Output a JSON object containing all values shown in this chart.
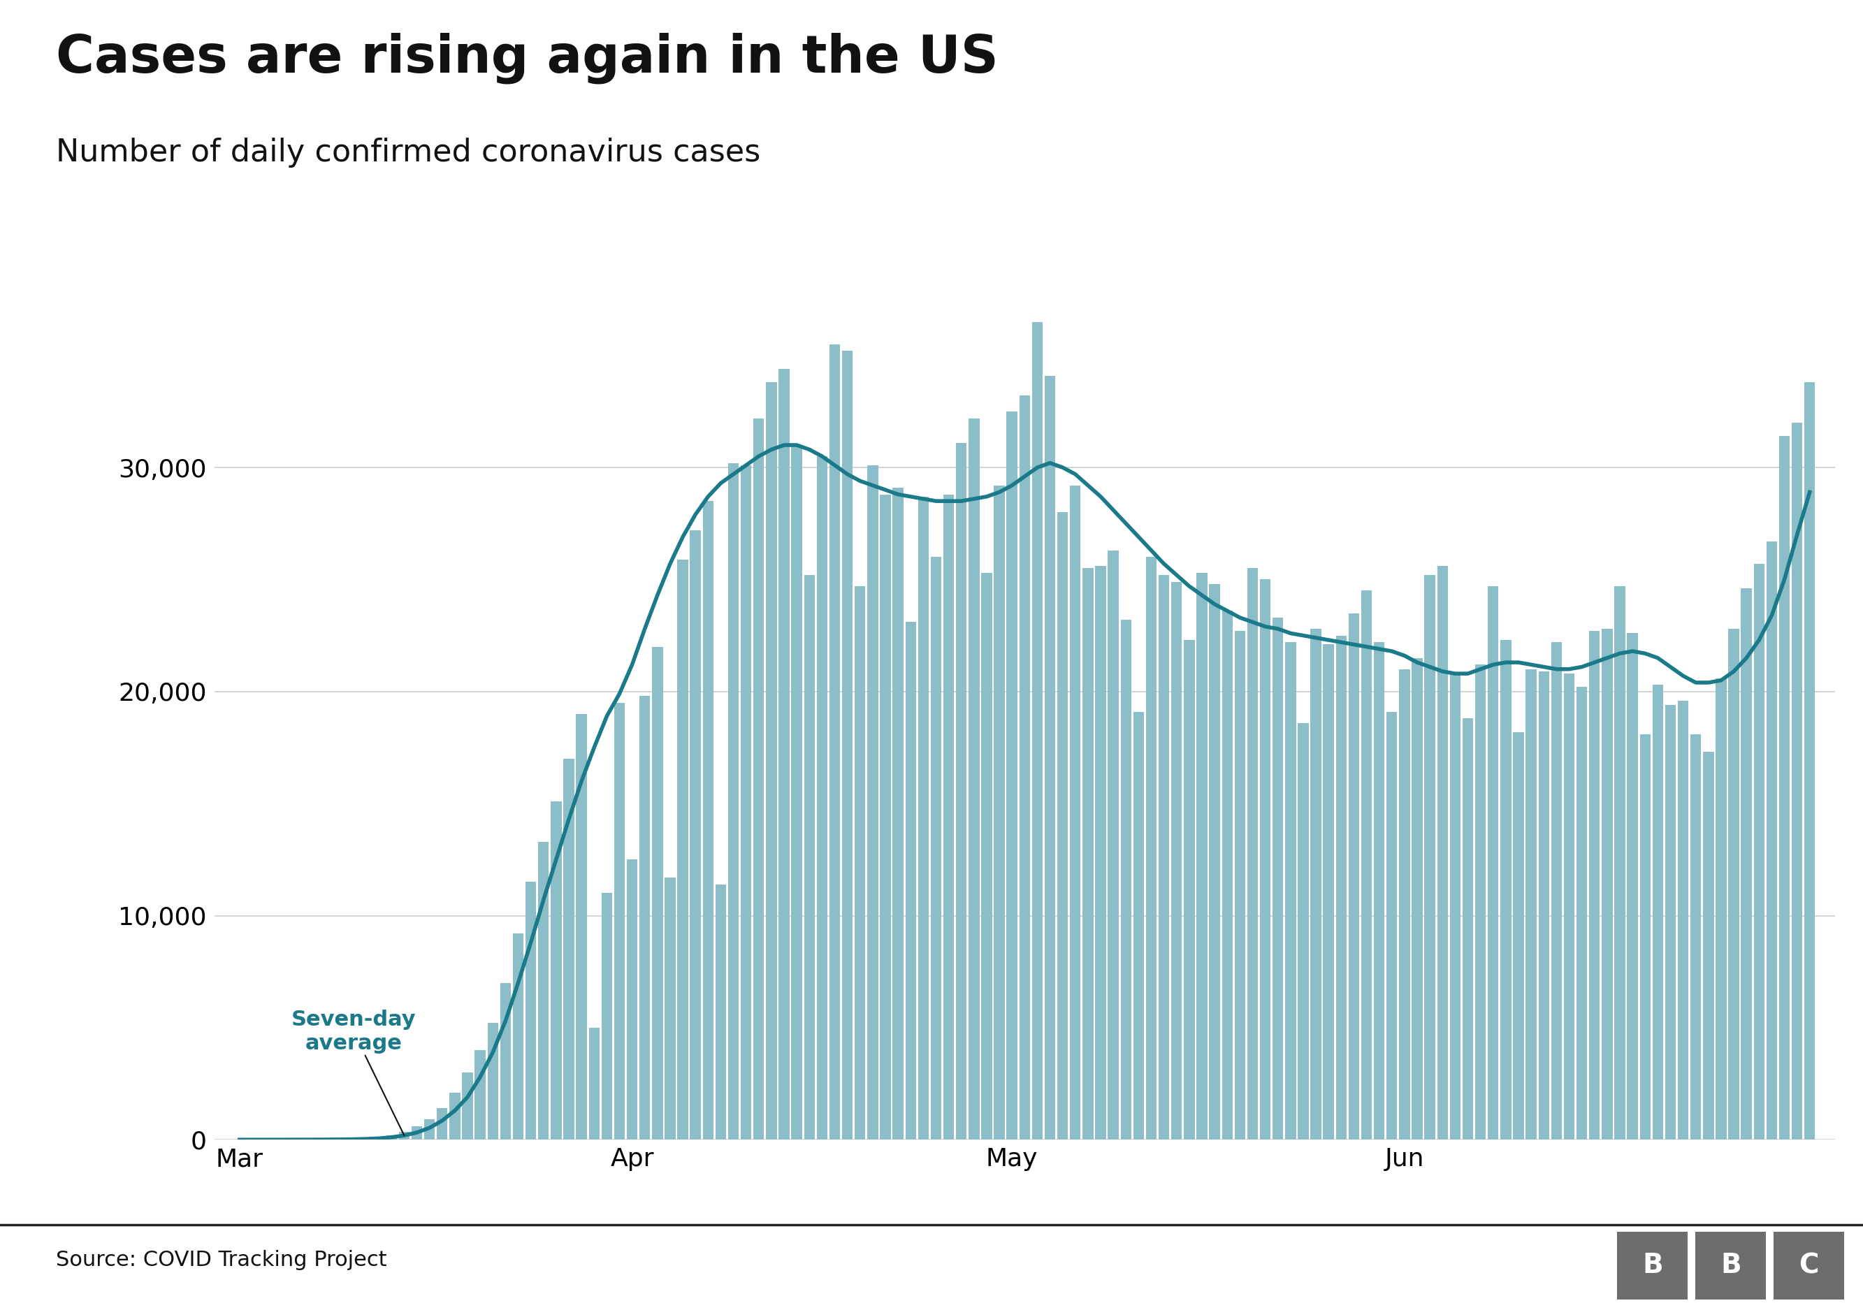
{
  "title": "Cases are rising again in the US",
  "subtitle": "Number of daily confirmed coronavirus cases",
  "source": "Source: COVID Tracking Project",
  "bar_color": "#8bbec9",
  "line_color": "#1b7a8a",
  "annotation_color": "#1b7a8a",
  "background_color": "#ffffff",
  "yticks": [
    0,
    10000,
    20000,
    30000
  ],
  "ylim": [
    0,
    38000
  ],
  "x_tick_labels": [
    "Mar",
    "Apr",
    "May",
    "Jun"
  ],
  "annotation_text": "Seven-day\naverage",
  "seven_day_avg": [
    0,
    0,
    0,
    1,
    2,
    3,
    5,
    8,
    12,
    20,
    35,
    60,
    110,
    190,
    320,
    530,
    850,
    1300,
    1900,
    2800,
    3900,
    5300,
    7000,
    8800,
    10700,
    12500,
    14300,
    16000,
    17500,
    18900,
    19900,
    21200,
    22800,
    24300,
    25700,
    26900,
    27900,
    28700,
    29300,
    29700,
    30100,
    30500,
    30800,
    31000,
    31000,
    30800,
    30500,
    30100,
    29700,
    29400,
    29200,
    29000,
    28800,
    28700,
    28600,
    28500,
    28500,
    28500,
    28600,
    28700,
    28900,
    29200,
    29600,
    30000,
    30200,
    30000,
    29700,
    29200,
    28700,
    28100,
    27500,
    26900,
    26300,
    25700,
    25200,
    24700,
    24300,
    23900,
    23600,
    23300,
    23100,
    22900,
    22800,
    22600,
    22500,
    22400,
    22300,
    22200,
    22100,
    22000,
    21900,
    21800,
    21600,
    21300,
    21100,
    20900,
    20800,
    20800,
    21000,
    21200,
    21300,
    21300,
    21200,
    21100,
    21000,
    21000,
    21100,
    21300,
    21500,
    21700,
    21800,
    21700,
    21500,
    21100,
    20700,
    20400,
    20400,
    20500,
    20900,
    21500,
    22300,
    23400,
    25000,
    27000,
    28900
  ],
  "daily_bars": [
    0,
    0,
    0,
    3,
    5,
    6,
    10,
    15,
    20,
    35,
    68,
    100,
    200,
    350,
    600,
    900,
    1400,
    2100,
    3000,
    4000,
    5200,
    7000,
    9200,
    11500,
    13300,
    15100,
    17000,
    19000,
    5000,
    11000,
    19500,
    12500,
    19800,
    22000,
    11700,
    25900,
    27200,
    28500,
    11400,
    30200,
    30100,
    32200,
    33800,
    34400,
    31000,
    25200,
    30500,
    35500,
    35200,
    24700,
    30100,
    28800,
    29100,
    23100,
    28700,
    26000,
    28800,
    31100,
    32200,
    25300,
    29200,
    32500,
    33200,
    36500,
    34100,
    28000,
    29200,
    25500,
    25600,
    26300,
    23200,
    19100,
    26000,
    25200,
    24900,
    22300,
    25300,
    24800,
    23600,
    22700,
    25500,
    25000,
    23300,
    22200,
    18600,
    22800,
    22100,
    22500,
    23500,
    24500,
    22200,
    19100,
    21000,
    21500,
    25200,
    25600,
    20800,
    18800,
    21200,
    24700,
    22300,
    18200,
    21000,
    20900,
    22200,
    20800,
    20200,
    22700,
    22800,
    24700,
    22600,
    18100,
    20300,
    19400,
    19600,
    18100,
    17300,
    20600,
    22800,
    24600,
    25700,
    26700,
    31400,
    32000,
    33800
  ]
}
